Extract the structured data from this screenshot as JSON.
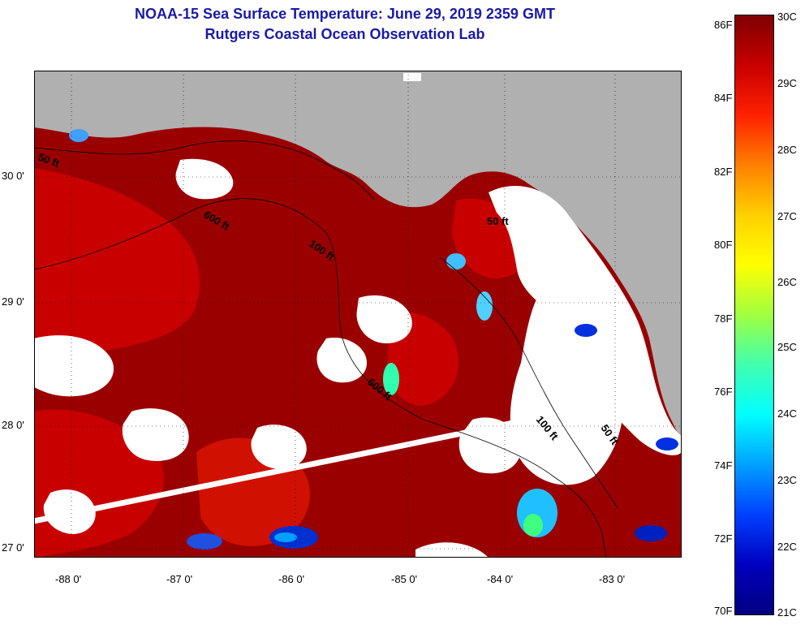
{
  "title_line1": "NOAA-15 Sea Surface Temperature:  June 29, 2019 2359 GMT",
  "title_line2": "Rutgers Coastal Ocean Observation Lab",
  "latitude_labels": [
    "30 0'",
    "29 0'",
    "28 0'",
    "27 0'"
  ],
  "longitude_labels": [
    "-88 0'",
    "-87 0'",
    "-86 0'",
    "-85 0'",
    "-84 0'",
    "-83 0'"
  ],
  "contour_labels": [
    "50 ft",
    "600 ft",
    "100 ft",
    "50 ft",
    "600 ft",
    "100 ft",
    "50 ft"
  ],
  "colorbar": {
    "fahrenheit_labels": [
      "86F",
      "84F",
      "82F",
      "80F",
      "78F",
      "76F",
      "74F",
      "72F",
      "70F"
    ],
    "celsius_labels": [
      "30C",
      "29C",
      "28C",
      "27C",
      "26C",
      "25C",
      "24C",
      "23C",
      "22C",
      "21C"
    ],
    "stops": [
      "#800000",
      "#c80000",
      "#ff2000",
      "#ff8000",
      "#ffd000",
      "#ffff00",
      "#a0ff40",
      "#40ffb0",
      "#00ffff",
      "#00a0ff",
      "#0040ff",
      "#0000c0",
      "#000080"
    ]
  },
  "colors": {
    "land": "#b0b0b0",
    "warm_water": "#9a0000",
    "hot_water": "#c40000",
    "cloud": "#ffffff",
    "title": "#1a1aa8"
  }
}
